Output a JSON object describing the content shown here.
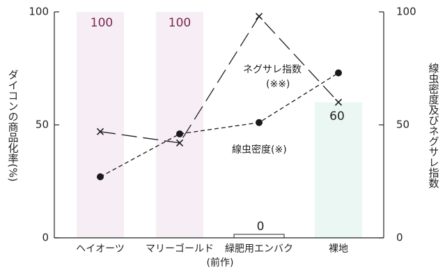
{
  "chart_data": {
    "type": "bar",
    "title": "",
    "xlabel": "(前作)",
    "ylabel_left": "ダイコンの商品化率(%)",
    "ylabel_right": "線虫密度及びネグサレ指数",
    "categories": [
      "ヘイオーツ",
      "マリーゴールド",
      "緑肥用エンバク",
      "裸地"
    ],
    "ylim": [
      0,
      100
    ],
    "y_ticks": [
      "0",
      "50",
      "100"
    ],
    "y2lim": [
      0,
      100
    ],
    "y2_ticks": [
      "0",
      "50",
      "100"
    ],
    "bars": {
      "name": "ダイコンの商品化率",
      "values": [
        100,
        100,
        0,
        60
      ],
      "labels": [
        "100",
        "100",
        "0",
        "60"
      ],
      "colors": [
        "#f6eef4",
        "#f6eef4",
        "#ffffff",
        "#eaf7f3"
      ]
    },
    "series": [
      {
        "name": "ネグサレ指数(※※)",
        "axis": "right",
        "style": "long-dash",
        "marker": "x",
        "values": [
          47,
          42,
          98,
          60
        ]
      },
      {
        "name": "線虫密度(※)",
        "axis": "right",
        "style": "short-dash",
        "marker": "dot",
        "values": [
          27,
          46,
          51,
          73
        ]
      }
    ],
    "annotations": [
      "ネグサレ指数",
      "(※※)",
      "線虫密度(※)"
    ],
    "bar_label_color": "#7a2752",
    "line_color": "#1a1a1a",
    "grid": false,
    "legend": "none"
  }
}
